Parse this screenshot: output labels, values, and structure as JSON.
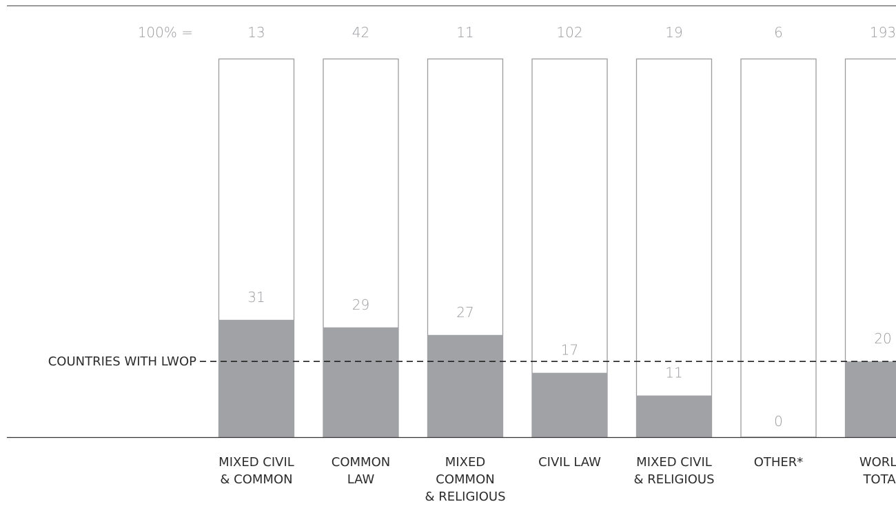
{
  "chart_data": {
    "type": "bar",
    "categories": [
      [
        "MIXED CIVIL",
        "& COMMON"
      ],
      [
        "COMMON",
        "LAW"
      ],
      [
        "MIXED",
        "COMMON",
        "& RELIGIOUS"
      ],
      [
        "CIVIL LAW"
      ],
      [
        "MIXED CIVIL",
        "& RELIGIOUS"
      ],
      [
        "OTHER*"
      ],
      [
        "WORLD",
        "TOTAL"
      ]
    ],
    "totals_label": "100% =",
    "totals": [
      13,
      42,
      11,
      102,
      19,
      6,
      193
    ],
    "values": [
      31,
      29,
      27,
      17,
      11,
      0,
      20
    ],
    "ylim": [
      0,
      100
    ],
    "reference_line": {
      "label": "COUNTRIES WITH LWOP",
      "value": 20
    },
    "colors": {
      "fill": "#a1a2a5",
      "outline": "#9a9b9f",
      "text": "#9a9b9f",
      "label_text": "#2b2b2b"
    }
  }
}
